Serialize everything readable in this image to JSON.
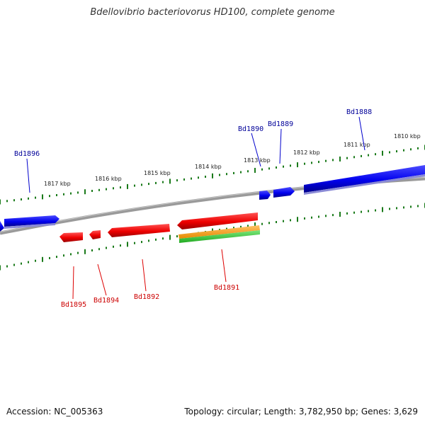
{
  "title": "Bdellovibrio bacteriovorus HD100, complete genome",
  "footer": {
    "accession": "Accession: NC_005363",
    "summary": "Topology: circular; Length: 3,782,950 bp; Genes: 3,629"
  },
  "colors": {
    "forward_gene": "#0000ee",
    "reverse_gene": "#ee0000",
    "orange_feature": "#ff9900",
    "green_feature": "#33cc33",
    "backbone": "#808080",
    "ticks": "#1a7a1a",
    "forward_label": "#000099",
    "reverse_label": "#cc0000"
  },
  "scale_labels": [
    {
      "id": "1817",
      "text": "1817 kbp"
    },
    {
      "id": "1816",
      "text": "1816 kbp"
    },
    {
      "id": "1815",
      "text": "1815 kbp"
    },
    {
      "id": "1814",
      "text": "1814 kbp"
    },
    {
      "id": "1813",
      "text": "1813 kbp"
    },
    {
      "id": "1812",
      "text": "1812 kbp"
    },
    {
      "id": "1811",
      "text": "1811 kbp"
    },
    {
      "id": "1810",
      "text": "1810 kbp"
    }
  ],
  "genes": [
    {
      "id": "Bd1896",
      "label": "Bd1896",
      "strand": "forward"
    },
    {
      "id": "Bd1890",
      "label": "Bd1890",
      "strand": "forward"
    },
    {
      "id": "Bd1889",
      "label": "Bd1889",
      "strand": "forward"
    },
    {
      "id": "Bd1888",
      "label": "Bd1888",
      "strand": "forward"
    },
    {
      "id": "Bd1895",
      "label": "Bd1895",
      "strand": "reverse"
    },
    {
      "id": "Bd1894",
      "label": "Bd1894",
      "strand": "reverse"
    },
    {
      "id": "Bd1892",
      "label": "Bd1892",
      "strand": "reverse"
    },
    {
      "id": "Bd1891",
      "label": "Bd1891",
      "strand": "reverse"
    }
  ]
}
